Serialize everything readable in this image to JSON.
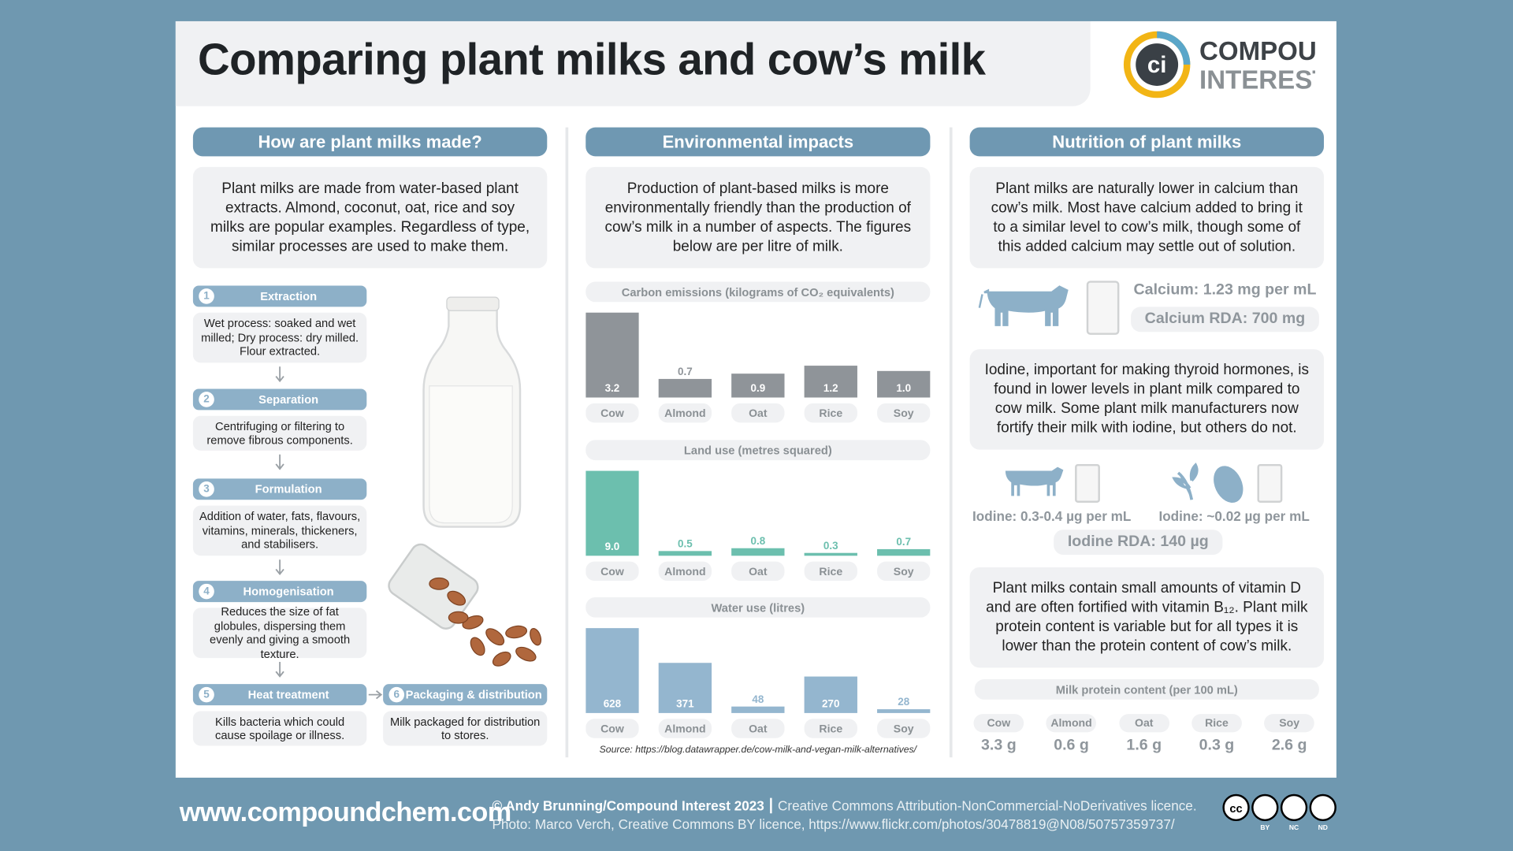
{
  "header": {
    "title": "Comparing plant milks and cow’s milk",
    "logo": [
      "COMPOUND",
      "INTEREST"
    ]
  },
  "making": {
    "heading": "How are plant milks made?",
    "intro": "Plant milks are made from water-based plant extracts. Almond, coconut, oat, rice and soy milks are popular examples. Regardless of type, similar processes are used to make them.",
    "steps": [
      {
        "number": 1,
        "title": "Extraction",
        "text": "Wet process: soaked and wet milled; Dry process: dry milled. Flour extracted."
      },
      {
        "number": 2,
        "title": "Separation",
        "text": "Centrifuging or filtering to remove fibrous components."
      },
      {
        "number": 3,
        "title": "Formulation",
        "text": "Addition of water, fats, flavours, vitamins, minerals, thickeners, and stabilisers."
      },
      {
        "number": 4,
        "title": "Homogenisation",
        "text": "Reduces the size of fat globules, dispersing them evenly and giving a smooth texture."
      },
      {
        "number": 5,
        "title": "Heat treatment",
        "text": "Kills bacteria which could cause spoilage or illness."
      },
      {
        "number": 6,
        "title": "Packaging & distribution",
        "text": "Milk packaged for distribution to stores."
      }
    ]
  },
  "environment": {
    "heading": "Environmental impacts",
    "intro": "Production of plant-based milks is more environmentally friendly than the production of cow’s milk in a number of aspects. The figures below are per litre of milk.",
    "charts": [
      {
        "type": "bar",
        "title": "Carbon emissions (kilograms of CO₂ equivalents)",
        "categories": [
          "Cow",
          "Almond",
          "Oat",
          "Rice",
          "Soy"
        ],
        "values": [
          3.2,
          0.7,
          0.9,
          1.2,
          1.0
        ],
        "value_labels": [
          "3.2",
          "0.7",
          "0.9",
          "1.2",
          "1.0"
        ],
        "color": "#8f9499"
      },
      {
        "type": "bar",
        "title": "Land use (metres squared)",
        "categories": [
          "Cow",
          "Almond",
          "Oat",
          "Rice",
          "Soy"
        ],
        "values": [
          9.0,
          0.5,
          0.8,
          0.3,
          0.7
        ],
        "value_labels": [
          "9.0",
          "0.5",
          "0.8",
          "0.3",
          "0.7"
        ],
        "color": "#6cbfae"
      },
      {
        "type": "bar",
        "title": "Water use (litres)",
        "categories": [
          "Cow",
          "Almond",
          "Oat",
          "Rice",
          "Soy"
        ],
        "values": [
          628,
          371,
          48,
          270,
          28
        ],
        "color": "#94b6cf"
      }
    ],
    "source": "Source: https://blog.datawrapper.de/cow-milk-and-vegan-milk-alternatives/"
  },
  "nutrition": {
    "heading": "Nutrition of plant milks",
    "calcium_text": "Plant milks are naturally lower in calcium than cow’s milk. Most have calcium added to bring it to a similar level to cow’s milk, though some of this added calcium may settle out of solution.",
    "calcium": "Calcium: 1.23 mg per mL",
    "calcium_rda": "Calcium RDA: 700 mg",
    "iodine_text": "Iodine, important for making thyroid hormones, is found in lower levels in plant milk compared to cow milk. Some plant milk manufacturers now fortify their milk with iodine, but others do not.",
    "iodine_cow": "Iodine: 0.3-0.4 µg per mL",
    "iodine_plant": "Iodine: ~0.02 µg per mL",
    "iodine_rda": "Iodine RDA: 140 µg",
    "vitamin_text": "Plant milks contain small amounts of vitamin D and are often fortified with vitamin B₁₂. Plant milk protein content is variable but for all types it is lower than the protein content of cow’s milk.",
    "protein": {
      "title": "Milk protein content (per 100 mL)",
      "categories": [
        "Cow",
        "Almond",
        "Oat",
        "Rice",
        "Soy"
      ],
      "values": [
        "3.3 g",
        "0.6 g",
        "1.6 g",
        "0.3 g",
        "2.6 g"
      ]
    }
  },
  "footer": {
    "website": "www.compoundchem.com",
    "credit": "© Andy Brunning/Compound Interest 2023",
    "licence": "Creative Commons Attribution-NonCommercial-NoDerivatives licence.",
    "photo": "Photo: Marco Verch, Creative Commons BY licence, https://www.flickr.com/photos/30478819@N08/50757359737/",
    "cc": [
      "BY",
      "NC",
      "ND"
    ]
  }
}
